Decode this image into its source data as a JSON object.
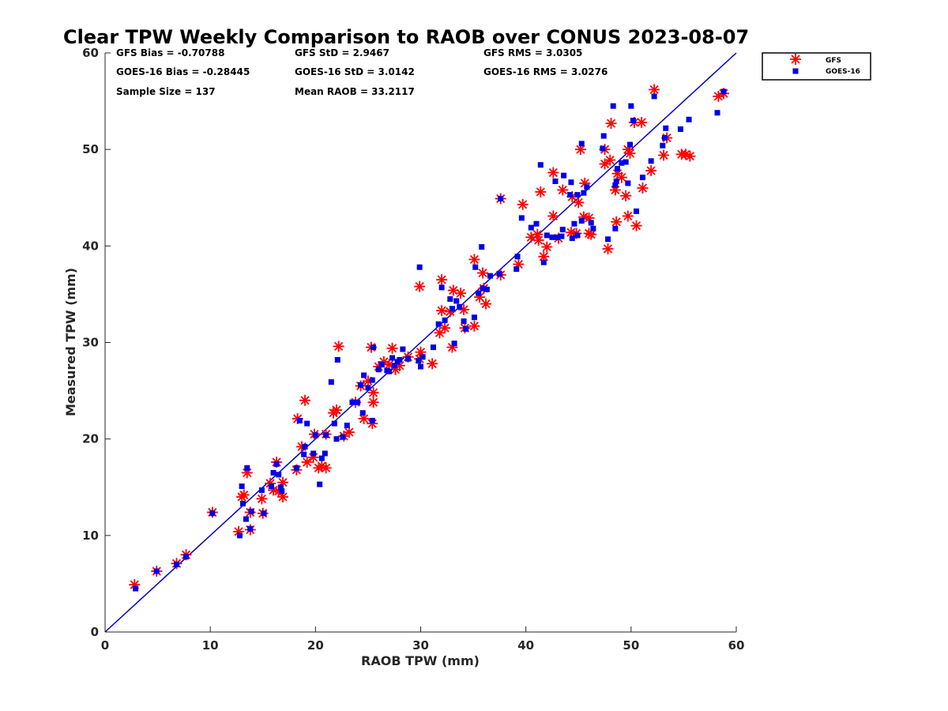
{
  "chart_data": {
    "type": "scatter",
    "title": "Clear TPW Weekly Comparison to RAOB over CONUS 2023-08-07",
    "xlabel": "RAOB TPW (mm)",
    "ylabel": "Measured TPW (mm)",
    "xlim": [
      0,
      60
    ],
    "ylim": [
      0,
      60
    ],
    "xticks": [
      "0",
      "10",
      "20",
      "30",
      "40",
      "50",
      "60"
    ],
    "yticks": [
      "0",
      "10",
      "20",
      "30",
      "40",
      "50",
      "60"
    ],
    "grid": false,
    "legend_position": "outside top-right",
    "reference_line": {
      "from": [
        0,
        0
      ],
      "to": [
        60,
        60
      ],
      "color": "#0000cc"
    },
    "stats": {
      "gfs_bias": "GFS Bias = -0.70788",
      "gfs_std": "GFS StD = 2.9467",
      "gfs_rms": "GFS RMS = 3.0305",
      "goes_bias": "GOES-16 Bias = -0.28445",
      "goes_std": "GOES-16 StD = 3.0142",
      "goes_rms": "GOES-16 RMS = 3.0276",
      "sample_size": "Sample Size = 137",
      "mean_raob": "Mean RAOB = 33.2117"
    },
    "series": [
      {
        "name": "GFS",
        "marker": "asterisk",
        "color": "#ff0000",
        "points": [
          [
            2.8,
            4.9
          ],
          [
            4.9,
            6.3
          ],
          [
            6.8,
            7.1
          ],
          [
            7.7,
            8.0
          ],
          [
            10.2,
            12.4
          ],
          [
            12.7,
            10.4
          ],
          [
            13.0,
            14.0
          ],
          [
            13.2,
            14.2
          ],
          [
            13.5,
            16.5
          ],
          [
            13.8,
            10.6
          ],
          [
            13.8,
            12.4
          ],
          [
            15.0,
            12.3
          ],
          [
            14.9,
            13.8
          ],
          [
            15.7,
            15.4
          ],
          [
            16.0,
            14.7
          ],
          [
            16.3,
            17.6
          ],
          [
            16.5,
            14.6
          ],
          [
            16.9,
            15.5
          ],
          [
            16.9,
            14.0
          ],
          [
            18.2,
            16.8
          ],
          [
            18.3,
            22.1
          ],
          [
            18.7,
            19.2
          ],
          [
            19.0,
            24.0
          ],
          [
            19.2,
            17.6
          ],
          [
            19.9,
            20.5
          ],
          [
            19.8,
            18.1
          ],
          [
            20.3,
            17.0
          ],
          [
            20.6,
            17.2
          ],
          [
            21.0,
            17.0
          ],
          [
            21.0,
            20.5
          ],
          [
            21.7,
            22.7
          ],
          [
            22.0,
            23.0
          ],
          [
            22.2,
            29.6
          ],
          [
            22.7,
            20.3
          ],
          [
            23.2,
            20.7
          ],
          [
            23.8,
            23.8
          ],
          [
            24.3,
            25.5
          ],
          [
            24.6,
            22.1
          ],
          [
            25.0,
            26.0
          ],
          [
            25.3,
            29.5
          ],
          [
            25.4,
            21.6
          ],
          [
            25.5,
            23.8
          ],
          [
            25.5,
            24.8
          ],
          [
            26.0,
            27.5
          ],
          [
            26.5,
            28.0
          ],
          [
            27.0,
            27.7
          ],
          [
            27.3,
            29.4
          ],
          [
            27.6,
            27.2
          ],
          [
            28.0,
            27.6
          ],
          [
            28.8,
            28.5
          ],
          [
            29.9,
            35.8
          ],
          [
            29.9,
            28.3
          ],
          [
            30.0,
            29.0
          ],
          [
            31.1,
            27.8
          ],
          [
            31.8,
            31.0
          ],
          [
            32.0,
            36.5
          ],
          [
            32.0,
            33.3
          ],
          [
            32.3,
            31.5
          ],
          [
            32.8,
            33.2
          ],
          [
            33.0,
            29.5
          ],
          [
            33.1,
            35.4
          ],
          [
            33.8,
            35.1
          ],
          [
            34.1,
            33.4
          ],
          [
            34.2,
            31.5
          ],
          [
            35.1,
            31.7
          ],
          [
            35.1,
            38.6
          ],
          [
            35.6,
            34.7
          ],
          [
            35.9,
            37.2
          ],
          [
            36.0,
            35.6
          ],
          [
            36.2,
            34.0
          ],
          [
            37.6,
            44.9
          ],
          [
            37.6,
            37.0
          ],
          [
            39.3,
            38.1
          ],
          [
            39.7,
            44.3
          ],
          [
            40.5,
            40.9
          ],
          [
            41.1,
            41.2
          ],
          [
            41.2,
            40.6
          ],
          [
            41.4,
            45.6
          ],
          [
            41.7,
            38.9
          ],
          [
            42.0,
            39.9
          ],
          [
            42.6,
            43.1
          ],
          [
            42.6,
            47.6
          ],
          [
            43.1,
            40.8
          ],
          [
            43.5,
            45.8
          ],
          [
            44.3,
            41.4
          ],
          [
            44.4,
            45.1
          ],
          [
            44.8,
            41.3
          ],
          [
            45.0,
            44.5
          ],
          [
            45.2,
            50.0
          ],
          [
            45.5,
            43.0
          ],
          [
            45.6,
            46.5
          ],
          [
            46.0,
            42.9
          ],
          [
            46.0,
            41.3
          ],
          [
            46.2,
            41.2
          ],
          [
            47.5,
            48.5
          ],
          [
            47.5,
            50.0
          ],
          [
            47.8,
            39.7
          ],
          [
            48.0,
            48.9
          ],
          [
            48.1,
            52.7
          ],
          [
            48.5,
            45.8
          ],
          [
            48.6,
            42.5
          ],
          [
            48.7,
            47.5
          ],
          [
            49.1,
            47.1
          ],
          [
            49.5,
            45.2
          ],
          [
            49.7,
            43.1
          ],
          [
            49.7,
            50.0
          ],
          [
            49.9,
            49.6
          ],
          [
            50.3,
            52.8
          ],
          [
            50.5,
            42.1
          ],
          [
            51.0,
            52.8
          ],
          [
            51.1,
            46.0
          ],
          [
            51.9,
            47.8
          ],
          [
            52.2,
            56.2
          ],
          [
            53.1,
            49.4
          ],
          [
            53.4,
            51.2
          ],
          [
            54.8,
            49.5
          ],
          [
            55.2,
            49.5
          ],
          [
            55.6,
            49.3
          ],
          [
            58.3,
            55.5
          ],
          [
            58.8,
            55.8
          ]
        ]
      },
      {
        "name": "GOES-16",
        "marker": "square",
        "color": "#0000e6",
        "points": [
          [
            2.9,
            4.5
          ],
          [
            4.9,
            6.3
          ],
          [
            6.8,
            7.0
          ],
          [
            7.7,
            7.8
          ],
          [
            10.2,
            12.3
          ],
          [
            12.8,
            10.0
          ],
          [
            13.0,
            15.1
          ],
          [
            13.1,
            13.3
          ],
          [
            13.4,
            11.7
          ],
          [
            13.5,
            17.0
          ],
          [
            13.8,
            10.7
          ],
          [
            13.9,
            12.5
          ],
          [
            14.9,
            14.7
          ],
          [
            15.1,
            12.3
          ],
          [
            15.8,
            15.1
          ],
          [
            16.0,
            16.5
          ],
          [
            16.3,
            17.4
          ],
          [
            16.5,
            16.3
          ],
          [
            16.7,
            15.0
          ],
          [
            16.8,
            14.6
          ],
          [
            18.2,
            17.0
          ],
          [
            18.5,
            21.9
          ],
          [
            18.9,
            18.4
          ],
          [
            19.0,
            19.2
          ],
          [
            19.2,
            21.6
          ],
          [
            19.8,
            18.5
          ],
          [
            20.0,
            20.4
          ],
          [
            20.4,
            15.3
          ],
          [
            20.6,
            18.0
          ],
          [
            20.9,
            18.5
          ],
          [
            21.0,
            20.4
          ],
          [
            21.5,
            25.9
          ],
          [
            21.8,
            21.6
          ],
          [
            22.0,
            20.0
          ],
          [
            22.1,
            28.2
          ],
          [
            22.6,
            20.2
          ],
          [
            23.0,
            21.4
          ],
          [
            23.5,
            23.8
          ],
          [
            24.0,
            23.8
          ],
          [
            24.3,
            25.6
          ],
          [
            24.5,
            22.7
          ],
          [
            24.6,
            26.6
          ],
          [
            25.0,
            25.3
          ],
          [
            25.4,
            21.9
          ],
          [
            25.4,
            26.1
          ],
          [
            25.5,
            29.5
          ],
          [
            26.0,
            27.2
          ],
          [
            26.3,
            27.7
          ],
          [
            26.8,
            27.1
          ],
          [
            27.0,
            27.0
          ],
          [
            27.3,
            28.4
          ],
          [
            27.5,
            27.6
          ],
          [
            27.8,
            28.0
          ],
          [
            28.0,
            28.2
          ],
          [
            28.3,
            29.3
          ],
          [
            28.8,
            28.3
          ],
          [
            29.8,
            28.1
          ],
          [
            29.9,
            37.8
          ],
          [
            30.0,
            27.5
          ],
          [
            30.2,
            28.5
          ],
          [
            31.2,
            29.5
          ],
          [
            31.7,
            31.9
          ],
          [
            32.0,
            35.7
          ],
          [
            32.3,
            32.3
          ],
          [
            32.8,
            34.5
          ],
          [
            33.0,
            33.5
          ],
          [
            33.2,
            29.9
          ],
          [
            33.4,
            34.3
          ],
          [
            33.7,
            33.7
          ],
          [
            34.1,
            32.2
          ],
          [
            34.3,
            31.4
          ],
          [
            35.1,
            32.6
          ],
          [
            35.2,
            37.8
          ],
          [
            35.5,
            35.1
          ],
          [
            35.8,
            39.9
          ],
          [
            35.9,
            35.6
          ],
          [
            36.3,
            35.5
          ],
          [
            36.6,
            36.9
          ],
          [
            37.5,
            37.1
          ],
          [
            37.6,
            44.9
          ],
          [
            39.1,
            37.6
          ],
          [
            39.2,
            38.9
          ],
          [
            39.6,
            42.9
          ],
          [
            40.5,
            41.9
          ],
          [
            41.0,
            42.3
          ],
          [
            41.4,
            48.4
          ],
          [
            41.7,
            38.3
          ],
          [
            42.0,
            41.1
          ],
          [
            42.5,
            40.9
          ],
          [
            42.8,
            46.7
          ],
          [
            43.0,
            40.9
          ],
          [
            43.4,
            41.0
          ],
          [
            43.5,
            41.7
          ],
          [
            43.6,
            47.3
          ],
          [
            44.2,
            45.3
          ],
          [
            44.3,
            46.6
          ],
          [
            44.4,
            40.8
          ],
          [
            44.6,
            42.3
          ],
          [
            44.9,
            41.1
          ],
          [
            44.9,
            45.3
          ],
          [
            45.3,
            50.6
          ],
          [
            45.3,
            42.6
          ],
          [
            45.5,
            45.5
          ],
          [
            45.8,
            46.1
          ],
          [
            46.2,
            42.4
          ],
          [
            46.4,
            41.8
          ],
          [
            47.3,
            50.1
          ],
          [
            47.4,
            51.4
          ],
          [
            47.8,
            40.7
          ],
          [
            48.3,
            54.5
          ],
          [
            48.5,
            46.3
          ],
          [
            48.5,
            41.8
          ],
          [
            48.6,
            46.7
          ],
          [
            48.7,
            48.0
          ],
          [
            49.1,
            48.6
          ],
          [
            49.5,
            48.7
          ],
          [
            49.7,
            46.5
          ],
          [
            49.9,
            50.5
          ],
          [
            50.0,
            54.5
          ],
          [
            50.2,
            53.0
          ],
          [
            50.5,
            43.6
          ],
          [
            51.1,
            47.1
          ],
          [
            51.9,
            48.8
          ],
          [
            52.2,
            55.5
          ],
          [
            53.0,
            50.4
          ],
          [
            53.3,
            52.2
          ],
          [
            53.2,
            51.2
          ],
          [
            54.7,
            52.1
          ],
          [
            55.5,
            53.1
          ],
          [
            58.2,
            53.8
          ],
          [
            58.8,
            56.0
          ]
        ]
      }
    ]
  }
}
